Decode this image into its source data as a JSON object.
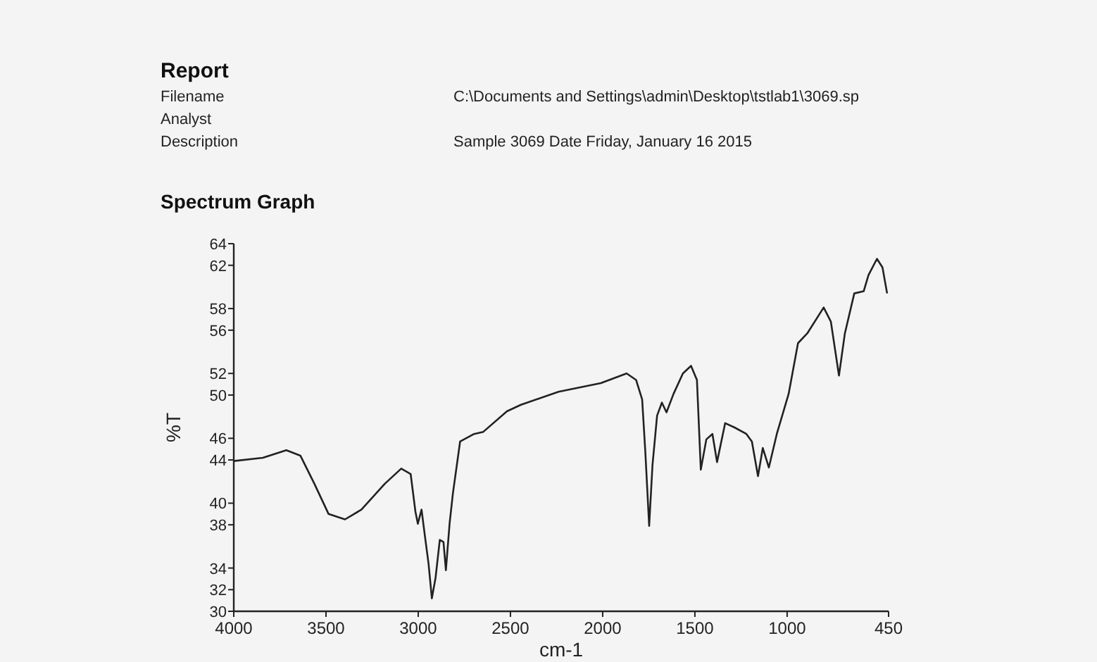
{
  "chart_data": {
    "type": "line",
    "title": "Report",
    "subtitle": "Spectrum Graph",
    "xlabel": "cm-1",
    "ylabel": "%T",
    "annotations": [
      "Filename",
      "C:\\Documents and Settings\\admin\\Desktop\\tstlab1\\3069.sp",
      "Analyst",
      "Description",
      "Sample 3069 Date Friday, January 16 2015"
    ],
    "xlim": [
      4000,
      450
    ],
    "xticks": [
      4000,
      3500,
      3000,
      2500,
      2000,
      1500,
      1000,
      450
    ],
    "ylim": [
      30,
      64
    ],
    "yticks": [
      30,
      32,
      34,
      38,
      40,
      44,
      46,
      50,
      52,
      56,
      58,
      62,
      64
    ],
    "series": [
      {
        "color": "#222222",
        "x": [
          4000,
          3842,
          3715,
          3639,
          3563,
          3486,
          3397,
          3308,
          3181,
          3092,
          3041,
          3015,
          3002,
          2982,
          2964,
          2944,
          2926,
          2906,
          2883,
          2863,
          2850,
          2830,
          2812,
          2773,
          2697,
          2647,
          2519,
          2443,
          2239,
          2010,
          1870,
          1819,
          1786,
          1769,
          1748,
          1730,
          1705,
          1679,
          1654,
          1616,
          1565,
          1521,
          1489,
          1468,
          1438,
          1405,
          1380,
          1336,
          1285,
          1221,
          1191,
          1158,
          1132,
          1099,
          1056,
          992,
          941,
          891,
          802,
          763,
          719,
          687,
          636,
          585,
          559,
          513,
          483,
          458
        ],
        "values": [
          43.9,
          44.2,
          44.9,
          44.4,
          41.8,
          39.0,
          38.5,
          39.4,
          41.8,
          43.2,
          42.7,
          39.2,
          38.1,
          39.4,
          37.0,
          34.4,
          31.2,
          33.1,
          36.6,
          36.4,
          33.8,
          38.1,
          40.9,
          45.7,
          46.4,
          46.6,
          48.5,
          49.1,
          50.3,
          51.1,
          52.0,
          51.4,
          49.6,
          44.8,
          37.9,
          43.5,
          48.1,
          49.3,
          48.4,
          50.1,
          52.0,
          52.7,
          51.4,
          43.1,
          45.9,
          46.4,
          43.8,
          47.4,
          47.0,
          46.4,
          45.7,
          42.5,
          45.1,
          43.3,
          46.4,
          50.1,
          54.8,
          55.7,
          58.1,
          56.8,
          51.8,
          55.7,
          59.4,
          59.6,
          61.1,
          62.6,
          61.8,
          59.4
        ]
      }
    ]
  }
}
